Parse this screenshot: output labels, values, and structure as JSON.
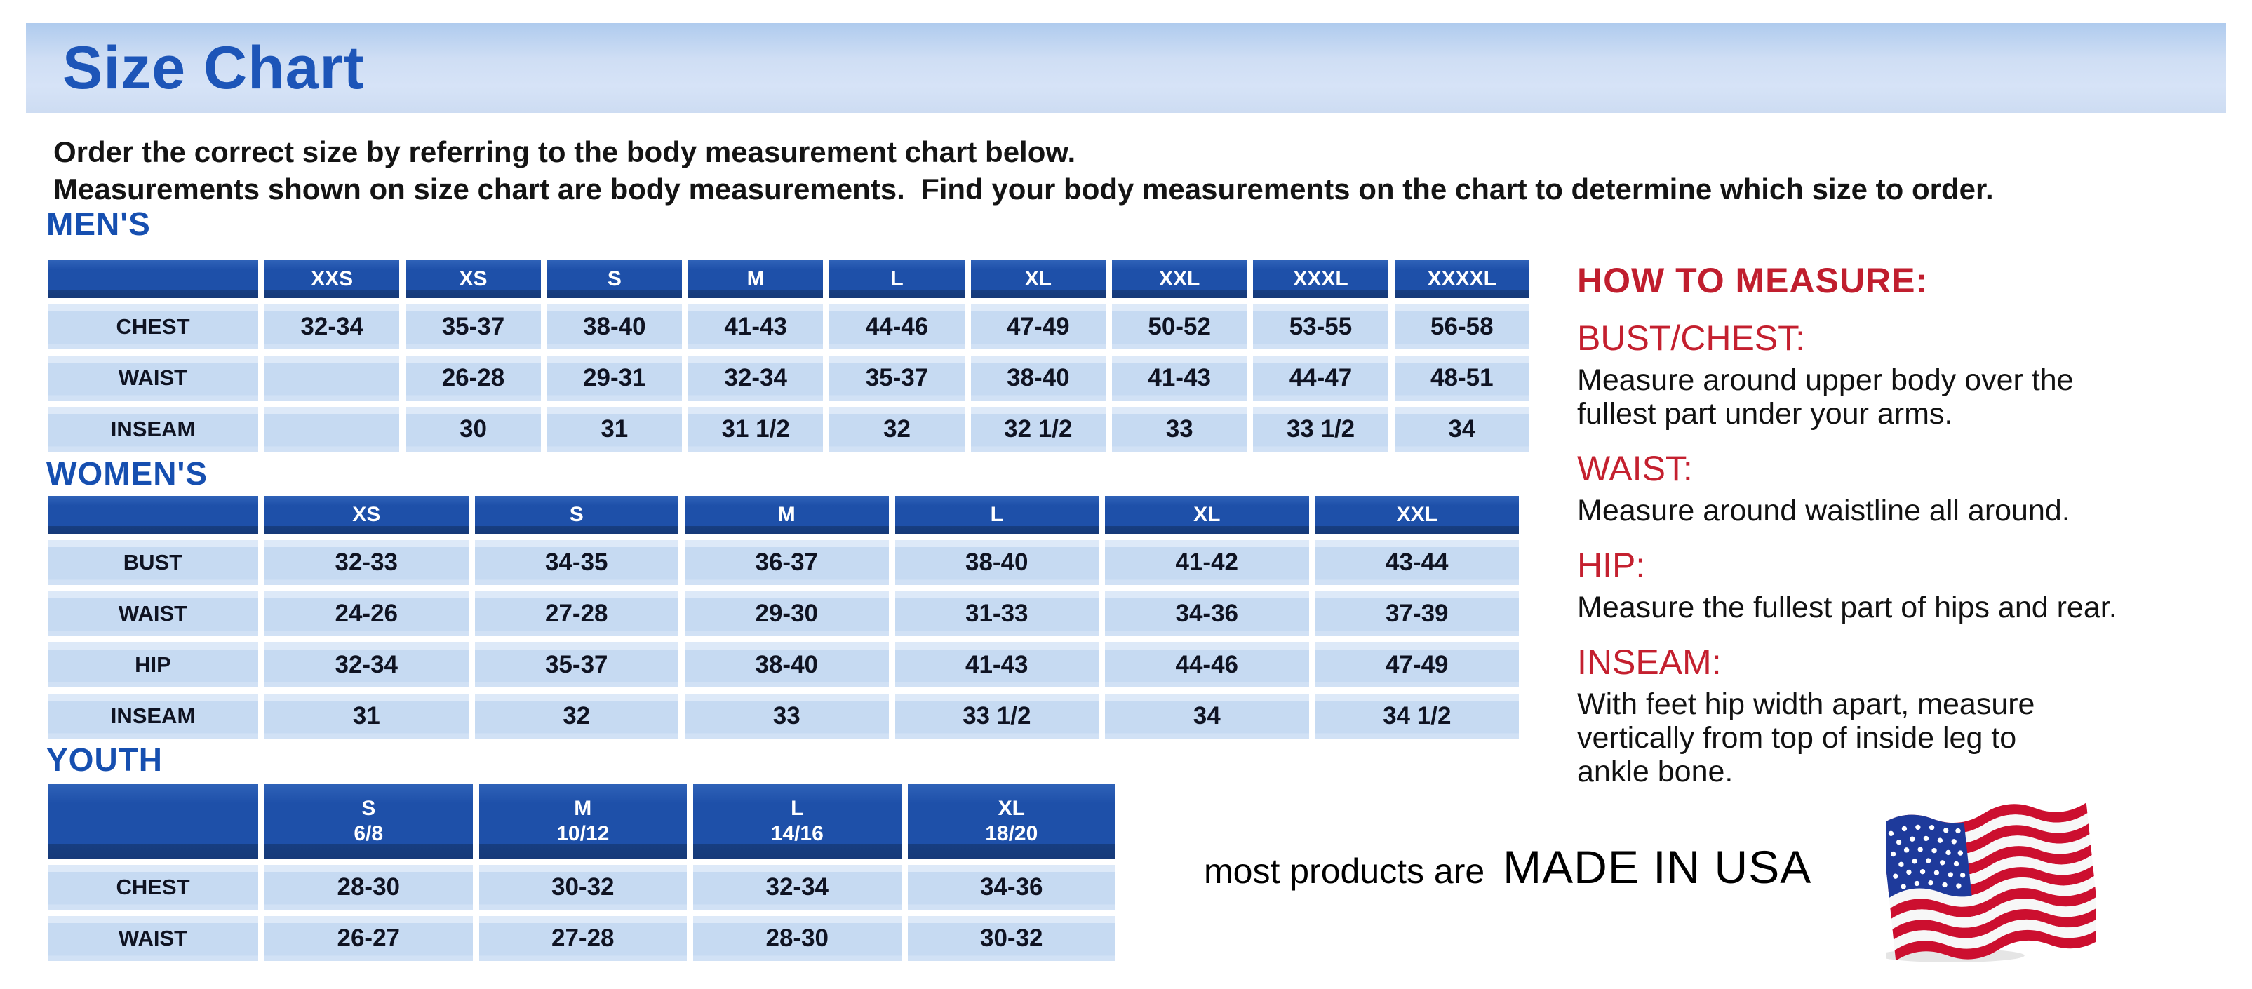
{
  "page": {
    "title": "Size Chart",
    "intro_line1": "Order the correct size by referring to the body measurement chart below.",
    "intro_line2": "Measurements shown on size chart are body measurements.  Find your body measurements on the chart to determine which size to order."
  },
  "colors": {
    "banner_blue": "#cfdef4",
    "table_header_blue": "#1e50a9",
    "cell_light_blue": "#c6daf2",
    "title_blue": "#1d55b8",
    "section_heading_blue": "#164fb0",
    "accent_red": "#c4202f",
    "body_text": "#121212"
  },
  "tables": [
    {
      "heading": "MEN'S",
      "columns": [
        "",
        "XXS",
        "XS",
        "S",
        "M",
        "L",
        "XL",
        "XXL",
        "XXXL",
        "XXXXL"
      ],
      "rows": [
        {
          "label": "CHEST",
          "values": [
            "32-34",
            "35-37",
            "38-40",
            "41-43",
            "44-46",
            "47-49",
            "50-52",
            "53-55",
            "56-58"
          ]
        },
        {
          "label": "WAIST",
          "values": [
            "",
            "26-28",
            "29-31",
            "32-34",
            "35-37",
            "38-40",
            "41-43",
            "44-47",
            "48-51"
          ]
        },
        {
          "label": "INSEAM",
          "values": [
            "",
            "30",
            "31",
            "31 1/2",
            "32",
            "32 1/2",
            "33",
            "33 1/2",
            "34"
          ]
        }
      ]
    },
    {
      "heading": "WOMEN'S",
      "columns": [
        "",
        "XS",
        "S",
        "M",
        "L",
        "XL",
        "XXL"
      ],
      "rows": [
        {
          "label": "BUST",
          "values": [
            "32-33",
            "34-35",
            "36-37",
            "38-40",
            "41-42",
            "43-44"
          ]
        },
        {
          "label": "WAIST",
          "values": [
            "24-26",
            "27-28",
            "29-30",
            "31-33",
            "34-36",
            "37-39"
          ]
        },
        {
          "label": "HIP",
          "values": [
            "32-34",
            "35-37",
            "38-40",
            "41-43",
            "44-46",
            "47-49"
          ]
        },
        {
          "label": "INSEAM",
          "values": [
            "31",
            "32",
            "33",
            "33 1/2",
            "34",
            "34 1/2"
          ]
        }
      ]
    },
    {
      "heading": "YOUTH",
      "columns": [
        "",
        "S\n6/8",
        "M\n10/12",
        "L\n14/16",
        "XL\n18/20"
      ],
      "rows": [
        {
          "label": "CHEST",
          "values": [
            "28-30",
            "30-32",
            "32-34",
            "34-36"
          ]
        },
        {
          "label": "WAIST",
          "values": [
            "26-27",
            "27-28",
            "28-30",
            "30-32"
          ]
        }
      ]
    }
  ],
  "how_to_measure": {
    "heading": "HOW TO MEASURE:",
    "items": [
      {
        "label": "BUST/CHEST:",
        "lines": [
          "Measure around upper body over the",
          "fullest part under your arms."
        ]
      },
      {
        "label": "WAIST:",
        "lines": [
          "Measure around waistline all around."
        ]
      },
      {
        "label": "HIP:",
        "lines": [
          "Measure the fullest part of hips and rear."
        ]
      },
      {
        "label": "INSEAM:",
        "lines": [
          "With feet hip width apart, measure",
          "vertically from top of inside leg to",
          "ankle bone."
        ]
      }
    ]
  },
  "footer": {
    "prefix": "most products are",
    "made_in": "MADE IN USA",
    "flag_icon": "us-flag-icon"
  }
}
